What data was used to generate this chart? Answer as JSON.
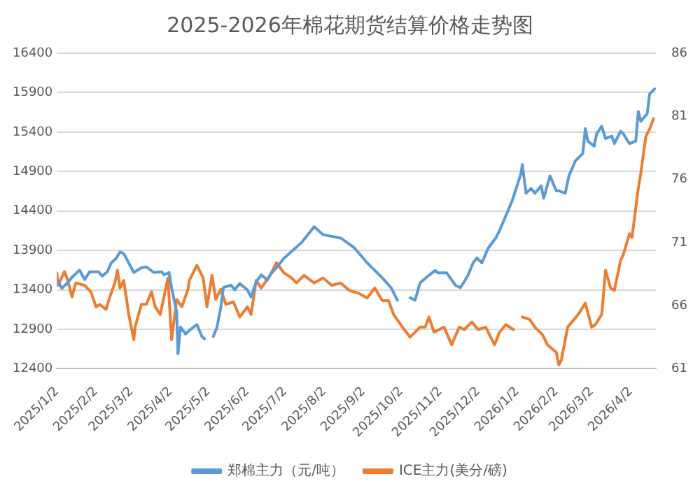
{
  "chart_data": {
    "type": "line",
    "title": "2025-2026年棉花期货结算价格走势图",
    "xlim": [
      "2025-01-02",
      "2026-04-22"
    ],
    "xticks": [
      {
        "value": "2025-01-02",
        "label": "2025/1/2"
      },
      {
        "value": "2025-02-02",
        "label": "2025/2/2"
      },
      {
        "value": "2025-03-02",
        "label": "2025/3/2"
      },
      {
        "value": "2025-04-02",
        "label": "2025/4/2"
      },
      {
        "value": "2025-05-02",
        "label": "2025/5/2"
      },
      {
        "value": "2025-06-02",
        "label": "2025/6/2"
      },
      {
        "value": "2025-07-02",
        "label": "2025/7/2"
      },
      {
        "value": "2025-08-02",
        "label": "2025/8/2"
      },
      {
        "value": "2025-09-02",
        "label": "2025/9/2"
      },
      {
        "value": "2025-10-02",
        "label": "2025/10/2"
      },
      {
        "value": "2025-11-02",
        "label": "2025/11/2"
      },
      {
        "value": "2025-12-02",
        "label": "2025/12/2"
      },
      {
        "value": "2026-01-02",
        "label": "2026/1/2"
      },
      {
        "value": "2026-02-02",
        "label": "2026/2/2"
      },
      {
        "value": "2026-03-02",
        "label": "2026/3/2"
      },
      {
        "value": "2026-04-02",
        "label": "2026/4/2"
      }
    ],
    "ylim": [
      12400,
      16400
    ],
    "yticks": [
      12400,
      12900,
      13400,
      13900,
      14400,
      14900,
      15400,
      15900,
      16400
    ],
    "y2lim": [
      61,
      86
    ],
    "y2ticks": [
      61,
      66,
      71,
      76,
      81,
      86
    ],
    "grid": "y",
    "legend": "bottom",
    "marker": "none",
    "line_style": "solid",
    "series": [
      {
        "name": "郑棉主力（元/吨）",
        "color": "#5b9bd5",
        "x": [
          "2025-01-02",
          "2025-01-06",
          "2025-01-10",
          "2025-01-14",
          "2025-01-20",
          "2025-01-24",
          "2025-01-28",
          "2025-02-04",
          "2025-02-07",
          "2025-02-11",
          "2025-02-14",
          "2025-02-18",
          "2025-02-21",
          "2025-02-24",
          "2025-02-28",
          "2025-03-04",
          "2025-03-10",
          "2025-03-14",
          "2025-03-20",
          "2025-03-26",
          "2025-03-28",
          "2025-04-01",
          "2025-04-03",
          "2025-04-07",
          "2025-04-08",
          "2025-04-10",
          "2025-04-14",
          "2025-04-18",
          "2025-04-23",
          "2025-04-27",
          "2025-04-29",
          "2025-05-02",
          "2025-05-06",
          "2025-05-09",
          "2025-05-12",
          "2025-05-14",
          "2025-05-20",
          "2025-05-23",
          "2025-05-27",
          "2025-06-02",
          "2025-06-05",
          "2025-06-09",
          "2025-06-13",
          "2025-06-18",
          "2025-06-20",
          "2025-06-25",
          "2025-07-01",
          "2025-07-15",
          "2025-07-25",
          "2025-08-01",
          "2025-08-15",
          "2025-08-26",
          "2025-09-05",
          "2025-09-17",
          "2025-09-24",
          "2025-09-29",
          "2025-10-03",
          "2025-10-09",
          "2025-10-13",
          "2025-10-17",
          "2025-10-24",
          "2025-10-29",
          "2025-10-31",
          "2025-11-07",
          "2025-11-14",
          "2025-11-18",
          "2025-11-24",
          "2025-11-28",
          "2025-12-01",
          "2025-12-05",
          "2025-12-10",
          "2025-12-16",
          "2025-12-19",
          "2025-12-29",
          "2026-01-05",
          "2026-01-06",
          "2026-01-09",
          "2026-01-13",
          "2026-01-16",
          "2026-01-21",
          "2026-01-23",
          "2026-01-28",
          "2026-02-02",
          "2026-02-04",
          "2026-02-09",
          "2026-02-12",
          "2026-02-17",
          "2026-02-23",
          "2026-02-25",
          "2026-02-27",
          "2026-03-04",
          "2026-03-06",
          "2026-03-10",
          "2026-03-13",
          "2026-03-18",
          "2026-03-20",
          "2026-03-25",
          "2026-03-27",
          "2026-04-01",
          "2026-04-06",
          "2026-04-08",
          "2026-04-10",
          "2026-04-15",
          "2026-04-17",
          "2026-04-21"
        ],
        "values": [
          13525,
          13420,
          13480,
          13560,
          13650,
          13530,
          13630,
          13630,
          13575,
          13630,
          13740,
          13800,
          13880,
          13860,
          13740,
          13620,
          13680,
          13690,
          13620,
          13630,
          13590,
          13620,
          13420,
          13120,
          12590,
          12930,
          12840,
          12900,
          12960,
          12810,
          12780,
          null,
          12810,
          12930,
          13180,
          13430,
          13460,
          13400,
          13480,
          13400,
          13310,
          13500,
          13590,
          13525,
          13590,
          13680,
          13800,
          14000,
          14200,
          14100,
          14057,
          13931,
          13742,
          13553,
          13427,
          13269,
          null,
          13301,
          13269,
          13490,
          13584,
          13647,
          13616,
          13616,
          13458,
          13427,
          13584,
          13742,
          13805,
          13742,
          13931,
          14057,
          14151,
          14529,
          14876,
          14989,
          14624,
          14687,
          14624,
          14718,
          14561,
          14844,
          14655,
          14655,
          14624,
          14844,
          15033,
          15128,
          15443,
          15285,
          15222,
          15380,
          15474,
          15317,
          15348,
          15254,
          15411,
          15380,
          15254,
          15285,
          15663,
          15537,
          15632,
          15884,
          15947
        ]
      },
      {
        "name": "ICE主力(美分/磅)",
        "color": "#ed7d31",
        "axis": "y2",
        "x": [
          "2025-01-02",
          "2025-01-03",
          "2025-01-08",
          "2025-01-10",
          "2025-01-14",
          "2025-01-17",
          "2025-01-24",
          "2025-01-29",
          "2025-02-02",
          "2025-02-05",
          "2025-02-10",
          "2025-02-13",
          "2025-02-17",
          "2025-02-19",
          "2025-02-21",
          "2025-02-24",
          "2025-02-28",
          "2025-03-04",
          "2025-03-05",
          "2025-03-10",
          "2025-03-14",
          "2025-03-18",
          "2025-03-21",
          "2025-03-25",
          "2025-03-31",
          "2025-04-03",
          "2025-04-07",
          "2025-04-11",
          "2025-04-16",
          "2025-04-17",
          "2025-04-23",
          "2025-04-28",
          "2025-05-01",
          "2025-05-05",
          "2025-05-08",
          "2025-05-12",
          "2025-05-16",
          "2025-05-22",
          "2025-05-27",
          "2025-06-02",
          "2025-06-05",
          "2025-06-09",
          "2025-06-13",
          "2025-06-20",
          "2025-06-25",
          "2025-07-01",
          "2025-07-07",
          "2025-07-11",
          "2025-07-17",
          "2025-07-25",
          "2025-08-01",
          "2025-08-08",
          "2025-08-15",
          "2025-08-22",
          "2025-08-29",
          "2025-09-05",
          "2025-09-11",
          "2025-09-17",
          "2025-09-22",
          "2025-09-26",
          "2025-10-03",
          "2025-10-09",
          "2025-10-13",
          "2025-10-17",
          "2025-10-21",
          "2025-10-24",
          "2025-10-28",
          "2025-11-05",
          "2025-11-11",
          "2025-11-17",
          "2025-11-21",
          "2025-11-27",
          "2025-12-02",
          "2025-12-08",
          "2025-12-15",
          "2025-12-19",
          "2025-12-24",
          "2025-12-30",
          "2026-01-02",
          "2026-01-06",
          "2026-01-12",
          "2026-01-16",
          "2026-01-22",
          "2026-01-26",
          "2026-02-02",
          "2026-02-04",
          "2026-02-06",
          "2026-02-11",
          "2026-02-16",
          "2026-02-20",
          "2026-02-25",
          "2026-03-02",
          "2026-03-05",
          "2026-03-10",
          "2026-03-13",
          "2026-03-17",
          "2026-03-20",
          "2026-03-25",
          "2026-03-27",
          "2026-04-01",
          "2026-04-03",
          "2026-04-08",
          "2026-04-10",
          "2026-04-14",
          "2026-04-17",
          "2026-04-20"
        ],
        "values": [
          68.6,
          67.6,
          68.7,
          68.2,
          66.7,
          67.8,
          67.6,
          67.1,
          65.9,
          66.1,
          65.7,
          66.7,
          67.8,
          68.8,
          67.4,
          68.0,
          65.3,
          63.3,
          64.3,
          66.1,
          66.1,
          67.1,
          65.9,
          65.3,
          68.2,
          63.3,
          66.5,
          65.9,
          67.3,
          68.0,
          69.2,
          68.2,
          65.9,
          68.4,
          66.5,
          67.3,
          66.1,
          66.3,
          65.1,
          65.9,
          65.3,
          68.0,
          67.4,
          68.4,
          69.4,
          68.6,
          68.2,
          67.8,
          68.4,
          67.8,
          68.2,
          67.6,
          67.8,
          67.2,
          67.0,
          66.6,
          67.4,
          66.4,
          66.4,
          65.3,
          64.3,
          63.5,
          63.9,
          64.3,
          64.3,
          65.1,
          63.9,
          64.3,
          62.9,
          64.3,
          64.1,
          64.7,
          64.1,
          64.3,
          62.9,
          63.9,
          64.5,
          64.1,
          null,
          65.1,
          64.9,
          64.3,
          63.7,
          62.9,
          62.3,
          61.3,
          61.7,
          64.3,
          64.9,
          65.4,
          66.2,
          64.3,
          64.5,
          65.3,
          68.8,
          67.4,
          67.2,
          69.6,
          70.0,
          71.7,
          71.4,
          75.3,
          76.5,
          79.4,
          80.0,
          80.8
        ]
      }
    ]
  }
}
